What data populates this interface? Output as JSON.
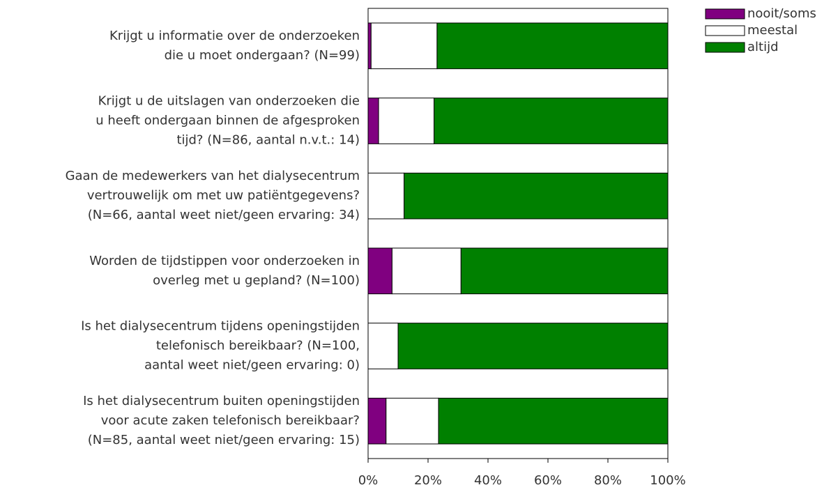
{
  "chart_data": {
    "type": "bar",
    "orientation": "horizontal",
    "stacked": true,
    "categories": [
      [
        "Krijgt u informatie over de onderzoeken",
        "die u moet ondergaan? (N=99)"
      ],
      [
        "Krijgt u de uitslagen van onderzoeken die",
        "u heeft ondergaan binnen de afgesproken",
        "tijd? (N=86, aantal n.v.t.: 14)"
      ],
      [
        "Gaan de medewerkers van het dialysecentrum",
        "vertrouwelijk om met uw patiëntgegevens?",
        "(N=66, aantal weet niet/geen ervaring: 34)"
      ],
      [
        "Worden de tijdstippen voor onderzoeken in",
        "overleg met u gepland? (N=100)"
      ],
      [
        "Is het dialysecentrum tijdens openingstijden",
        "telefonisch bereikbaar? (N=100,",
        "aantal weet niet/geen ervaring: 0)"
      ],
      [
        "Is het dialysecentrum buiten openingstijden",
        "voor acute zaken telefonisch bereikbaar?",
        "(N=85, aantal weet niet/geen ervaring: 15)"
      ]
    ],
    "series": [
      {
        "name": "nooit/soms",
        "color": "#800080",
        "values": [
          1,
          3.5,
          0,
          8,
          0,
          6
        ]
      },
      {
        "name": "meestal",
        "color": "#ffffff",
        "values": [
          22,
          18.5,
          12,
          23,
          10,
          17.5
        ]
      },
      {
        "name": "altijd",
        "color": "#008000",
        "values": [
          77,
          78,
          88,
          69,
          90,
          76.5
        ]
      }
    ],
    "xlim": [
      0,
      100
    ],
    "xticks": [
      {
        "value": 0,
        "label": "0%"
      },
      {
        "value": 20,
        "label": "20%"
      },
      {
        "value": 40,
        "label": "40%"
      },
      {
        "value": 60,
        "label": "60%"
      },
      {
        "value": 80,
        "label": "80%"
      },
      {
        "value": 100,
        "label": "100%"
      }
    ],
    "legend": "top-right"
  }
}
